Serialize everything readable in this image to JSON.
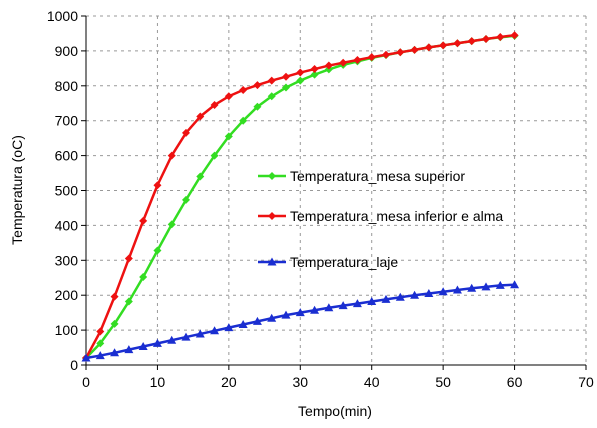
{
  "chart_data": {
    "type": "line",
    "xlabel": "Tempo(min)",
    "ylabel": "Temperatura (oC)",
    "xlim": [
      0,
      70
    ],
    "ylim": [
      0,
      1000
    ],
    "xticks": [
      0,
      10,
      20,
      30,
      40,
      50,
      60,
      70
    ],
    "yticks": [
      0,
      100,
      200,
      300,
      400,
      500,
      600,
      700,
      800,
      900,
      1000
    ],
    "xtick_labels": [
      "0",
      "10",
      "20",
      "30",
      "40",
      "50",
      "60",
      "70"
    ],
    "ytick_labels": [
      "0",
      "100",
      "200",
      "300",
      "400",
      "500",
      "600",
      "700",
      "800",
      "900",
      "1000"
    ],
    "grid": "dashed",
    "legend_position": "inside-right",
    "x": [
      0,
      2,
      4,
      6,
      8,
      10,
      12,
      14,
      16,
      18,
      20,
      22,
      24,
      26,
      28,
      30,
      32,
      34,
      36,
      38,
      40,
      42,
      44,
      46,
      48,
      50,
      52,
      54,
      56,
      58,
      60
    ],
    "series": [
      {
        "name": "Temperatura_mesa superior",
        "color": "#33dd22",
        "marker": "diamond",
        "values": [
          20,
          62,
          118,
          182,
          252,
          328,
          403,
          473,
          540,
          600,
          655,
          700,
          740,
          770,
          795,
          815,
          832,
          847,
          860,
          870,
          880,
          888,
          896,
          903,
          910,
          916,
          922,
          928,
          934,
          939,
          943
        ]
      },
      {
        "name": "Temperatura_mesa inferior e alma",
        "color": "#ee1111",
        "marker": "diamond",
        "values": [
          20,
          96,
          196,
          305,
          413,
          515,
          600,
          665,
          712,
          745,
          770,
          788,
          802,
          815,
          826,
          838,
          848,
          858,
          866,
          874,
          882,
          889,
          896,
          903,
          910,
          916,
          922,
          928,
          934,
          940,
          945
        ]
      },
      {
        "name": "Temperatura_laje",
        "color": "#1a2ed1",
        "marker": "triangle",
        "values": [
          20,
          27,
          35,
          44,
          53,
          62,
          71,
          80,
          89,
          98,
          107,
          116,
          125,
          134,
          143,
          150,
          157,
          164,
          170,
          176,
          182,
          188,
          194,
          200,
          205,
          210,
          215,
          220,
          224,
          228,
          230
        ]
      }
    ]
  }
}
